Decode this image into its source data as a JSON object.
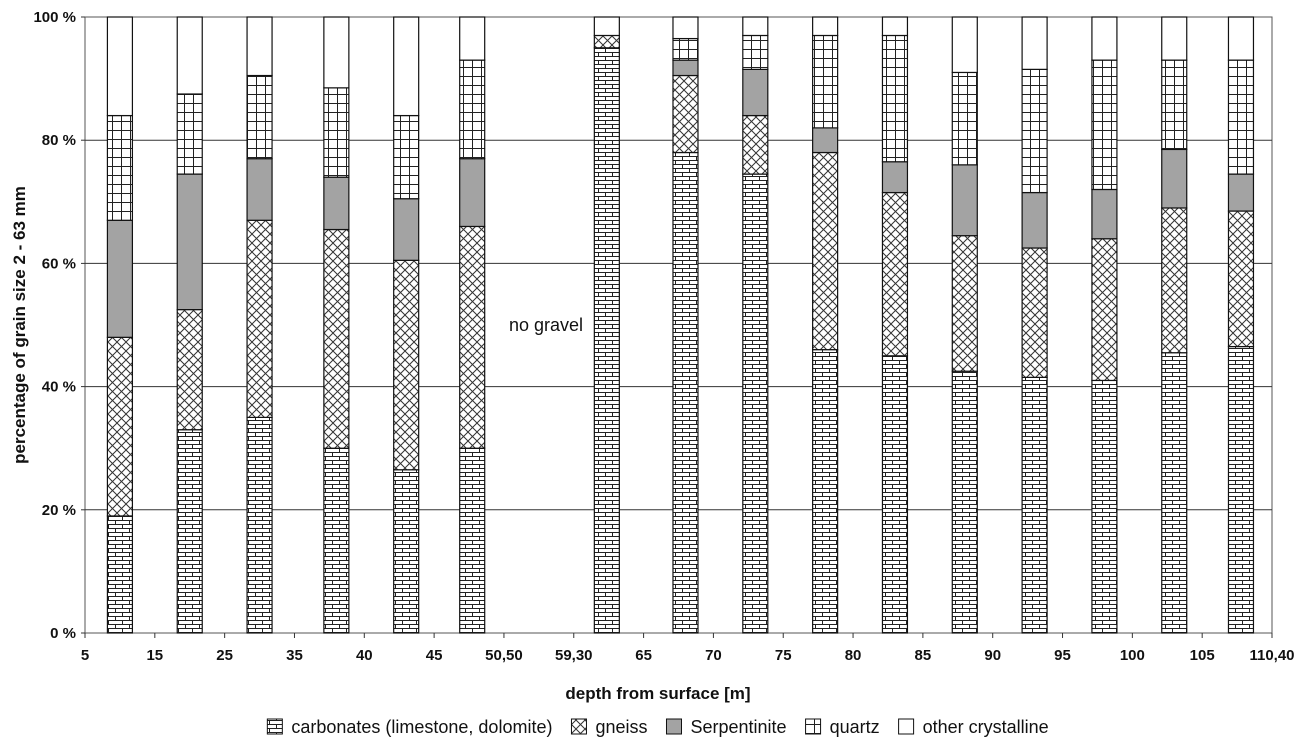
{
  "chart_data": {
    "type": "bar",
    "stacked": true,
    "xlabel": "depth from surface [m]",
    "ylabel": "percentage of grain size 2 - 63 mm",
    "ylim": [
      0,
      100
    ],
    "y_ticks": [
      "0 %",
      "20 %",
      "40 %",
      "60 %",
      "80 %",
      "100 %"
    ],
    "x_ticks": [
      "5",
      "15",
      "25",
      "35",
      "40",
      "45",
      "50,50",
      "59,30",
      "65",
      "70",
      "75",
      "80",
      "85",
      "90",
      "95",
      "100",
      "105",
      "110,40"
    ],
    "grid": "horizontal",
    "legend_position": "bottom",
    "annotation": "no gravel",
    "categories": [
      "10",
      "20",
      "30",
      "38",
      "43",
      "48",
      "62",
      "68",
      "73",
      "78",
      "83",
      "88",
      "93",
      "98",
      "103",
      "108"
    ],
    "series": [
      {
        "name": "carbonates (limestone, dolomite)",
        "pattern": "brick",
        "values": [
          19,
          33,
          35,
          30,
          26.5,
          30,
          95,
          78,
          74.5,
          46,
          45,
          42.5,
          41.5,
          41,
          45.5,
          46.5
        ]
      },
      {
        "name": "gneiss",
        "pattern": "crosshatch",
        "values": [
          29,
          19.5,
          32,
          35.5,
          34,
          36,
          2,
          12.5,
          9.5,
          32,
          26.5,
          22,
          21,
          23,
          23.5,
          22
        ]
      },
      {
        "name": "Serpentinite",
        "pattern": "solid-gray",
        "values": [
          19,
          22,
          10,
          8.5,
          10,
          11,
          0,
          2.5,
          7.5,
          4,
          5,
          11.5,
          9,
          8,
          9.5,
          6
        ]
      },
      {
        "name": "quartz",
        "pattern": "grid",
        "values": [
          17,
          13,
          13.5,
          14.5,
          13.5,
          16,
          0,
          3.5,
          5.5,
          15,
          20.5,
          15,
          20,
          21,
          14.5,
          18.5
        ]
      },
      {
        "name": "other crystalline",
        "pattern": "white",
        "values": [
          16,
          12.5,
          9.5,
          11.5,
          16,
          7,
          3,
          3.5,
          3,
          3,
          3,
          9,
          8.5,
          7,
          7,
          7
        ]
      }
    ]
  }
}
